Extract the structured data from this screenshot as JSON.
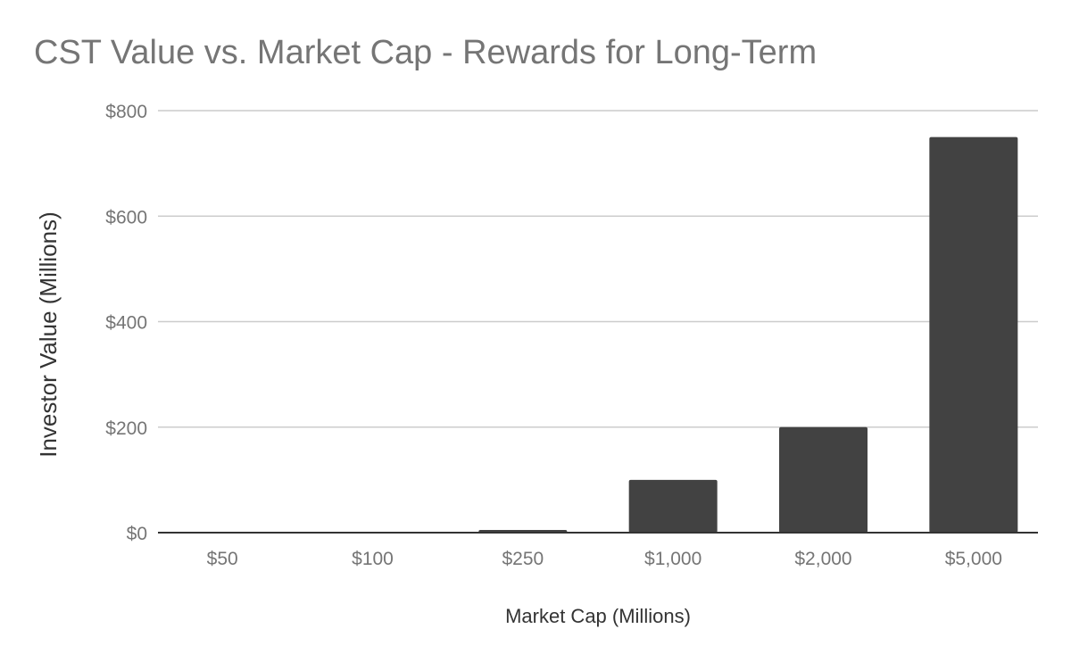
{
  "chart_data": {
    "type": "bar",
    "title": "CST Value vs. Market Cap - Rewards for Long-Term",
    "xlabel": "Market Cap (Millions)",
    "ylabel": "Investor Value (Millions)",
    "categories": [
      "$50",
      "$100",
      "$250",
      "$1,000",
      "$2,000",
      "$5,000"
    ],
    "values": [
      0.5,
      1,
      5,
      100,
      200,
      750
    ],
    "ylim": [
      0,
      800
    ],
    "yticks": [
      0,
      200,
      400,
      600,
      800
    ],
    "ytick_labels": [
      "$0",
      "$200",
      "$400",
      "$600",
      "$800"
    ],
    "grid": true,
    "legend": "none",
    "bar_color": "#424242",
    "grid_color": "#cccccc",
    "axis_color": "#333333"
  }
}
